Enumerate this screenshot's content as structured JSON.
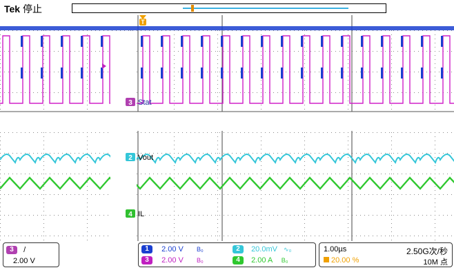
{
  "header": {
    "brand": "Tek",
    "state": "停止"
  },
  "labels": {
    "ch3": "Stat",
    "ch2": "Vout",
    "ch4": "IL",
    "ch3_num": "3",
    "ch2_num": "2",
    "ch4_num": "4"
  },
  "status": {
    "trigger_channel": "3",
    "trigger_slope": "/",
    "trigger_level": "2.00 V",
    "ch1": {
      "num": "1",
      "scale": "2.00 V",
      "coupling": "B₀"
    },
    "ch2": {
      "num": "2",
      "scale": "20.0mV",
      "coupling": "∿₀"
    },
    "ch3": {
      "num": "3",
      "scale": "2.00 V",
      "coupling": "B₀"
    },
    "ch4": {
      "num": "4",
      "scale": "2.00 A",
      "coupling": "B₀"
    },
    "timebase": "1.00µs",
    "sample_rate": "2.50G次/秒",
    "record_position": "20.00 %",
    "record_length": "10M 点"
  },
  "colors": {
    "ch1": "#1a3fd0",
    "ch2": "#34c6d8",
    "ch3": "#d020c8",
    "ch4": "#2fc82f",
    "trigger": "#f0a000"
  }
}
